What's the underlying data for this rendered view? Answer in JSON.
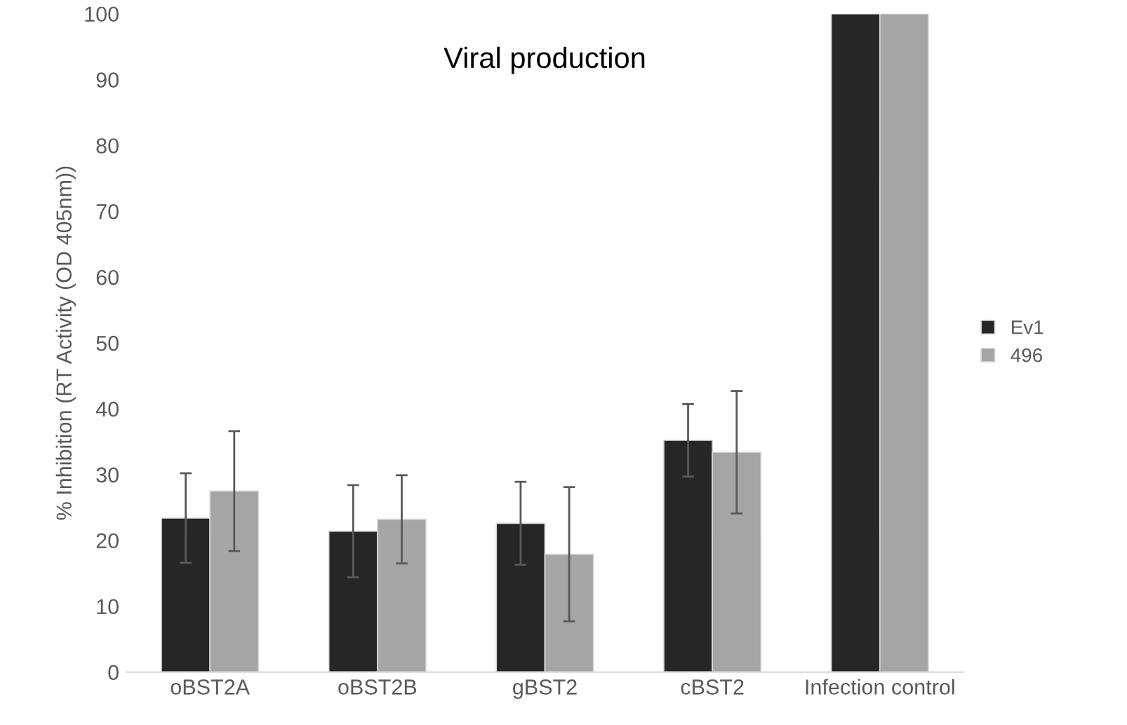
{
  "chart_data": {
    "type": "bar",
    "title": "Viral production",
    "ylabel": "% Inhibition (RT Activity (OD 405nm))",
    "categories": [
      "oBST2A",
      "oBST2B",
      "gBST2",
      "cBST2",
      "Infection control"
    ],
    "series": [
      {
        "name": "Ev1",
        "color": "#262626",
        "values": [
          23.4,
          21.4,
          22.6,
          35.2,
          100
        ],
        "errors": [
          6.8,
          7.0,
          6.3,
          5.5,
          null
        ]
      },
      {
        "name": "496",
        "color": "#a5a5a5",
        "values": [
          27.5,
          23.2,
          17.9,
          33.4,
          100
        ],
        "errors": [
          9.1,
          6.7,
          10.2,
          9.3,
          null
        ]
      }
    ],
    "ylim": [
      0,
      100
    ],
    "yticks": [
      0,
      10,
      20,
      30,
      40,
      50,
      60,
      70,
      80,
      90,
      100
    ],
    "grid": false,
    "legend": "right"
  }
}
